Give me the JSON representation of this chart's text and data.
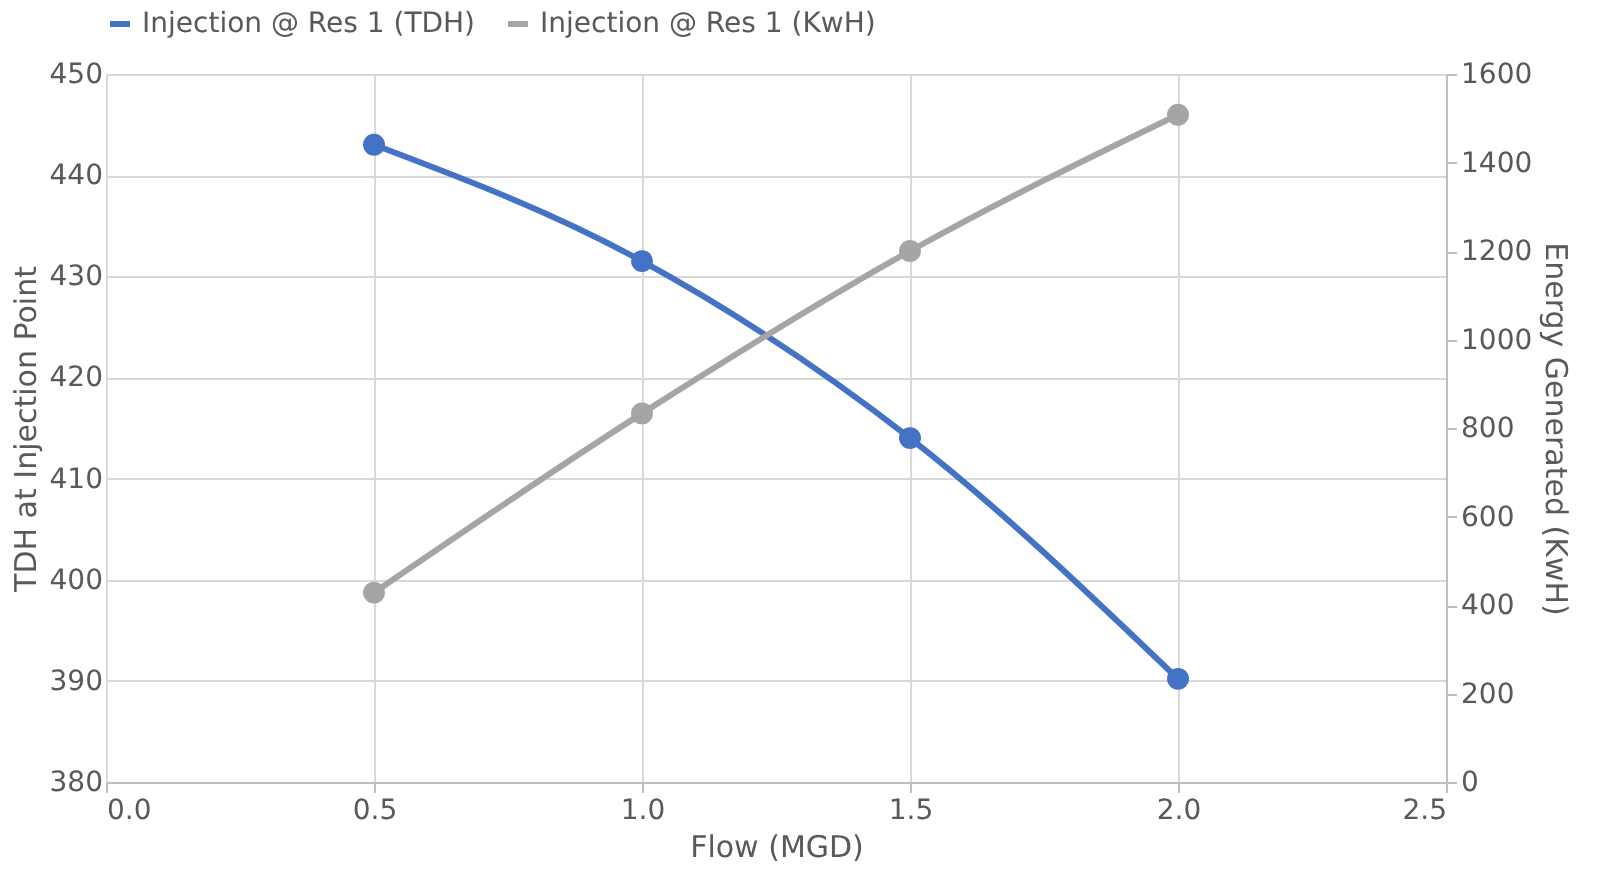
{
  "chart_data": {
    "type": "line",
    "xlabel": "Flow (MGD)",
    "ylabel": "TDH at Injection Point",
    "y2label": "Energy Generated (KwH)",
    "x": [
      0.5,
      1.0,
      1.5,
      2.0
    ],
    "series": [
      {
        "name": "Injection @ Res 1 (TDH)",
        "color": "#4472c4",
        "values": [
          443,
          431.5,
          414,
          390.2
        ]
      },
      {
        "name": "Injection @ Res 1 (KwH)",
        "color": "#a5a5a5",
        "values": [
          428,
          833,
          1200,
          1508
        ],
        "axis": "y2"
      }
    ],
    "xlim": [
      0.0,
      2.5
    ],
    "xticks": [
      {
        "value": 0,
        "label": "0.0"
      },
      0.5,
      {
        "value": 1,
        "label": "1.0"
      },
      1.5,
      {
        "value": 2,
        "label": "2.0"
      },
      2.5
    ],
    "ylim": [
      380,
      450
    ],
    "yticks": [
      380,
      390,
      400,
      410,
      420,
      430,
      440,
      450
    ],
    "y2lim": [
      0,
      1600
    ],
    "y2ticks": [
      0,
      200,
      400,
      600,
      800,
      1000,
      1200,
      1400,
      1600
    ],
    "grid": true,
    "legend": "top",
    "marker": "circle",
    "line_style": "solid"
  }
}
